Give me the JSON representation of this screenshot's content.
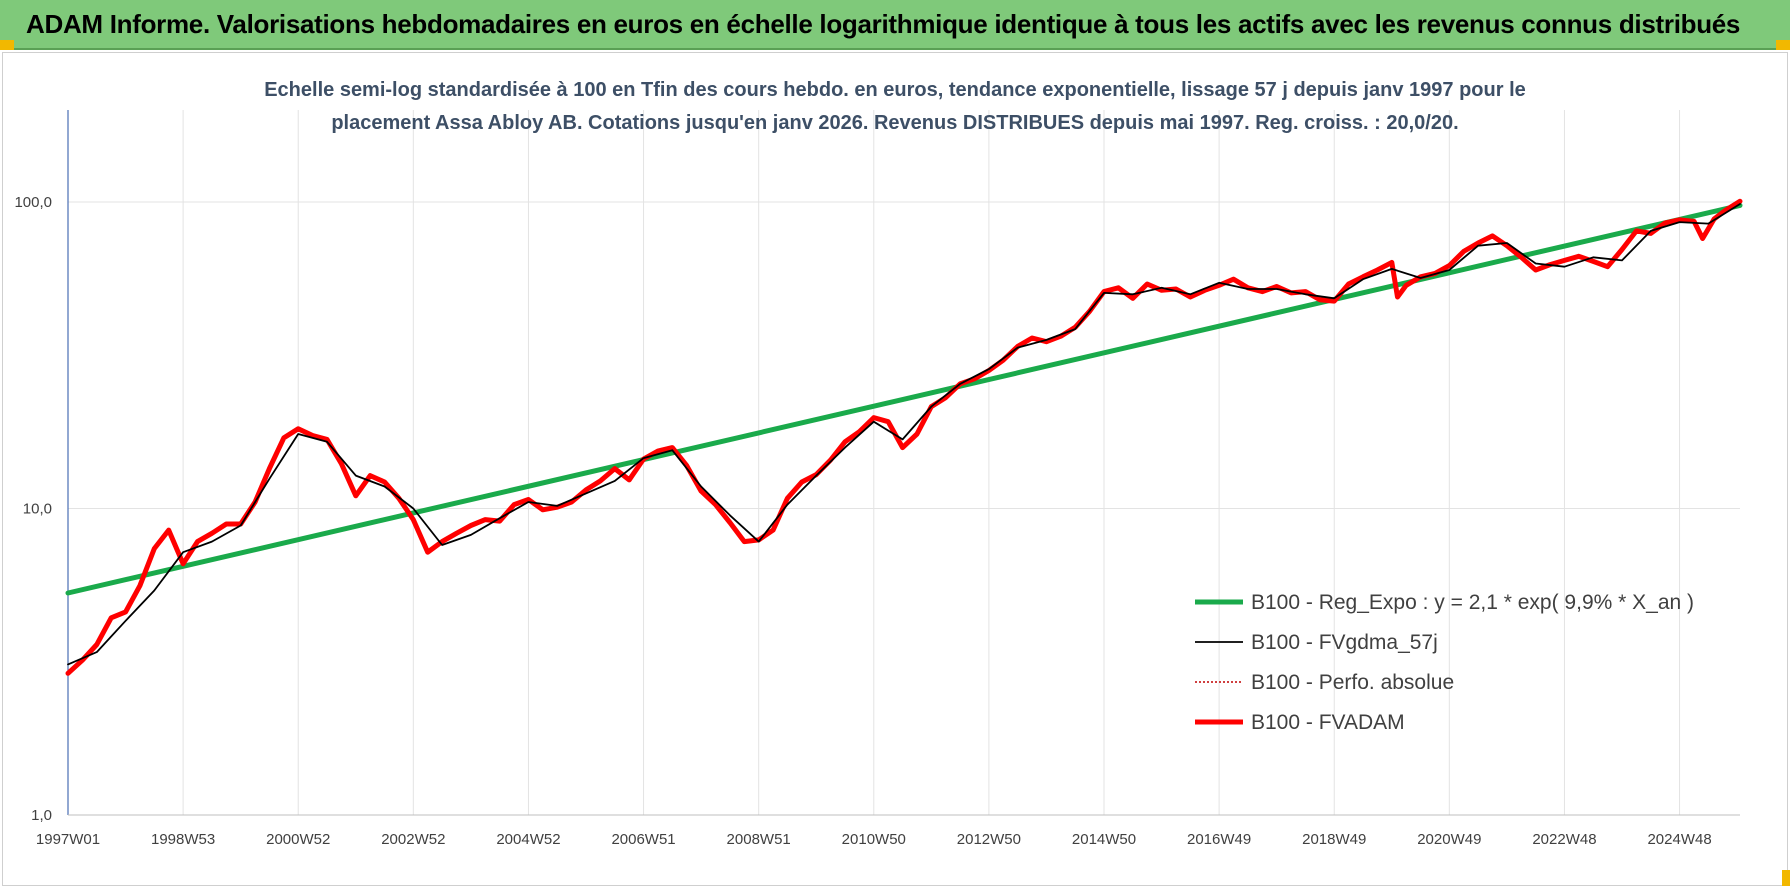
{
  "banner": {
    "title": "ADAM Informe. Valorisations hebdomadaires en euros en échelle logarithmique identique à tous les actifs avec les revenus connus distribués",
    "background": "#7fc97a",
    "corner_color": "#f2b800"
  },
  "chart_data": {
    "type": "line",
    "title_lines": [
      "Echelle semi-log standardisée à 100 en Tfin des cours hebdo. en euros, tendance exponentielle, lissage 57 j depuis janv 1997 pour le",
      "placement Assa Abloy AB. Cotations jusqu'en janv 2026. Revenus DISTRIBUES depuis mai 1997. Reg. croiss. : 20,0/20."
    ],
    "xlabel": "",
    "ylabel": "",
    "y_scale": "log",
    "ylim": [
      1,
      100
    ],
    "yticks": [
      {
        "value": 1,
        "label": "1,0"
      },
      {
        "value": 10,
        "label": "10,0"
      },
      {
        "value": 100,
        "label": "100,0"
      }
    ],
    "xlim": [
      1997.0,
      2026.05
    ],
    "xticks": [
      {
        "value": 1997.0,
        "label": "1997W01"
      },
      {
        "value": 1999.0,
        "label": "1998W53"
      },
      {
        "value": 2001.0,
        "label": "2000W52"
      },
      {
        "value": 2003.0,
        "label": "2002W52"
      },
      {
        "value": 2005.0,
        "label": "2004W52"
      },
      {
        "value": 2007.0,
        "label": "2006W51"
      },
      {
        "value": 2009.0,
        "label": "2008W51"
      },
      {
        "value": 2011.0,
        "label": "2010W50"
      },
      {
        "value": 2013.0,
        "label": "2012W50"
      },
      {
        "value": 2015.0,
        "label": "2014W50"
      },
      {
        "value": 2017.0,
        "label": "2016W49"
      },
      {
        "value": 2019.0,
        "label": "2018W49"
      },
      {
        "value": 2021.0,
        "label": "2020W49"
      },
      {
        "value": 2023.0,
        "label": "2022W48"
      },
      {
        "value": 2025.0,
        "label": "2024W48"
      }
    ],
    "grid": true,
    "legend_position": "bottom-right",
    "series": [
      {
        "name": "B100 - Reg_Expo : y = 2,1 * exp( 9,9% *  X_an )",
        "color": "#1aaa4b",
        "style": "solid-thick",
        "points": [
          [
            1997.0,
            5.3
          ],
          [
            2026.05,
            97.5
          ]
        ]
      },
      {
        "name": "B100 - FVgdma_57j",
        "color": "#000000",
        "style": "solid-thin",
        "points": [
          [
            1997.0,
            3.1
          ],
          [
            1997.5,
            3.4
          ],
          [
            1998.0,
            4.3
          ],
          [
            1998.5,
            5.4
          ],
          [
            1999.0,
            7.2
          ],
          [
            1999.5,
            7.8
          ],
          [
            2000.0,
            8.8
          ],
          [
            2000.5,
            12.5
          ],
          [
            2001.0,
            17.5
          ],
          [
            2001.5,
            16.5
          ],
          [
            2002.0,
            12.8
          ],
          [
            2002.5,
            11.8
          ],
          [
            2003.0,
            10.0
          ],
          [
            2003.5,
            7.6
          ],
          [
            2004.0,
            8.2
          ],
          [
            2004.5,
            9.3
          ],
          [
            2005.0,
            10.5
          ],
          [
            2005.5,
            10.2
          ],
          [
            2006.0,
            11.2
          ],
          [
            2006.5,
            12.3
          ],
          [
            2007.0,
            14.6
          ],
          [
            2007.5,
            15.5
          ],
          [
            2008.0,
            11.8
          ],
          [
            2008.5,
            9.5
          ],
          [
            2009.0,
            7.8
          ],
          [
            2009.5,
            10.3
          ],
          [
            2010.0,
            12.8
          ],
          [
            2010.5,
            15.8
          ],
          [
            2011.0,
            19.2
          ],
          [
            2011.5,
            16.8
          ],
          [
            2012.0,
            21.5
          ],
          [
            2012.5,
            25.5
          ],
          [
            2013.0,
            28.5
          ],
          [
            2013.5,
            33.5
          ],
          [
            2014.0,
            35.5
          ],
          [
            2014.5,
            38.5
          ],
          [
            2015.0,
            50.5
          ],
          [
            2015.5,
            50.0
          ],
          [
            2016.0,
            52.5
          ],
          [
            2016.5,
            50.0
          ],
          [
            2017.0,
            54.5
          ],
          [
            2017.5,
            52.0
          ],
          [
            2018.0,
            52.0
          ],
          [
            2018.5,
            50.0
          ],
          [
            2019.0,
            48.5
          ],
          [
            2019.5,
            56.0
          ],
          [
            2020.0,
            60.5
          ],
          [
            2020.5,
            56.5
          ],
          [
            2021.0,
            60.0
          ],
          [
            2021.5,
            72.0
          ],
          [
            2022.0,
            73.5
          ],
          [
            2022.5,
            63.0
          ],
          [
            2023.0,
            61.5
          ],
          [
            2023.5,
            66.0
          ],
          [
            2024.0,
            64.5
          ],
          [
            2024.5,
            80.5
          ],
          [
            2025.0,
            86.0
          ],
          [
            2025.5,
            85.0
          ],
          [
            2026.05,
            98.5
          ]
        ]
      },
      {
        "name": "B100 - Perfo. absolue",
        "color": "#c00000",
        "style": "dotted",
        "points": []
      },
      {
        "name": "B100 - FVADAM",
        "color": "#ff0000",
        "style": "solid-thick",
        "points": [
          [
            1997.0,
            2.9
          ],
          [
            1997.25,
            3.2
          ],
          [
            1997.5,
            3.6
          ],
          [
            1997.75,
            4.4
          ],
          [
            1998.0,
            4.6
          ],
          [
            1998.25,
            5.6
          ],
          [
            1998.5,
            7.4
          ],
          [
            1998.75,
            8.5
          ],
          [
            1999.0,
            6.6
          ],
          [
            1999.25,
            7.8
          ],
          [
            1999.5,
            8.3
          ],
          [
            1999.75,
            8.9
          ],
          [
            2000.0,
            8.9
          ],
          [
            2000.25,
            10.5
          ],
          [
            2000.5,
            13.5
          ],
          [
            2000.75,
            17.0
          ],
          [
            2001.0,
            18.2
          ],
          [
            2001.25,
            17.3
          ],
          [
            2001.5,
            16.8
          ],
          [
            2001.75,
            14.0
          ],
          [
            2002.0,
            11.0
          ],
          [
            2002.25,
            12.8
          ],
          [
            2002.5,
            12.2
          ],
          [
            2002.75,
            10.8
          ],
          [
            2003.0,
            9.2
          ],
          [
            2003.25,
            7.2
          ],
          [
            2003.5,
            7.8
          ],
          [
            2003.75,
            8.3
          ],
          [
            2004.0,
            8.8
          ],
          [
            2004.25,
            9.2
          ],
          [
            2004.5,
            9.1
          ],
          [
            2004.75,
            10.3
          ],
          [
            2005.0,
            10.7
          ],
          [
            2005.25,
            9.9
          ],
          [
            2005.5,
            10.1
          ],
          [
            2005.75,
            10.5
          ],
          [
            2006.0,
            11.5
          ],
          [
            2006.25,
            12.3
          ],
          [
            2006.5,
            13.5
          ],
          [
            2006.75,
            12.4
          ],
          [
            2007.0,
            14.5
          ],
          [
            2007.25,
            15.4
          ],
          [
            2007.5,
            15.8
          ],
          [
            2007.75,
            13.8
          ],
          [
            2008.0,
            11.4
          ],
          [
            2008.25,
            10.3
          ],
          [
            2008.5,
            9.0
          ],
          [
            2008.75,
            7.8
          ],
          [
            2009.0,
            7.9
          ],
          [
            2009.25,
            8.5
          ],
          [
            2009.5,
            10.8
          ],
          [
            2009.75,
            12.2
          ],
          [
            2010.0,
            12.9
          ],
          [
            2010.25,
            14.4
          ],
          [
            2010.5,
            16.5
          ],
          [
            2010.75,
            17.8
          ],
          [
            2011.0,
            19.8
          ],
          [
            2011.25,
            19.2
          ],
          [
            2011.5,
            15.8
          ],
          [
            2011.75,
            17.5
          ],
          [
            2012.0,
            21.5
          ],
          [
            2012.25,
            23.0
          ],
          [
            2012.5,
            25.5
          ],
          [
            2012.75,
            26.5
          ],
          [
            2013.0,
            28.2
          ],
          [
            2013.25,
            30.5
          ],
          [
            2013.5,
            33.8
          ],
          [
            2013.75,
            36.0
          ],
          [
            2014.0,
            35.0
          ],
          [
            2014.25,
            36.5
          ],
          [
            2014.5,
            39.0
          ],
          [
            2014.75,
            44.0
          ],
          [
            2015.0,
            51.0
          ],
          [
            2015.25,
            52.5
          ],
          [
            2015.5,
            48.5
          ],
          [
            2015.75,
            54.0
          ],
          [
            2016.0,
            51.5
          ],
          [
            2016.25,
            52.0
          ],
          [
            2016.5,
            49.0
          ],
          [
            2016.75,
            51.5
          ],
          [
            2017.0,
            53.5
          ],
          [
            2017.25,
            56.0
          ],
          [
            2017.5,
            52.5
          ],
          [
            2017.75,
            51.0
          ],
          [
            2018.0,
            53.0
          ],
          [
            2018.25,
            50.5
          ],
          [
            2018.5,
            51.0
          ],
          [
            2018.75,
            48.0
          ],
          [
            2019.0,
            47.5
          ],
          [
            2019.25,
            54.0
          ],
          [
            2019.5,
            57.0
          ],
          [
            2019.75,
            60.0
          ],
          [
            2020.0,
            63.5
          ],
          [
            2020.1,
            49.0
          ],
          [
            2020.25,
            53.5
          ],
          [
            2020.5,
            57.0
          ],
          [
            2020.75,
            58.5
          ],
          [
            2021.0,
            62.0
          ],
          [
            2021.25,
            69.0
          ],
          [
            2021.5,
            73.5
          ],
          [
            2021.75,
            77.5
          ],
          [
            2022.0,
            72.0
          ],
          [
            2022.25,
            66.0
          ],
          [
            2022.5,
            60.0
          ],
          [
            2022.75,
            62.5
          ],
          [
            2023.0,
            64.5
          ],
          [
            2023.25,
            66.5
          ],
          [
            2023.5,
            64.0
          ],
          [
            2023.75,
            61.5
          ],
          [
            2024.0,
            70.0
          ],
          [
            2024.25,
            80.5
          ],
          [
            2024.5,
            79.0
          ],
          [
            2024.75,
            85.5
          ],
          [
            2025.0,
            87.5
          ],
          [
            2025.25,
            86.5
          ],
          [
            2025.4,
            76.0
          ],
          [
            2025.6,
            88.0
          ],
          [
            2025.8,
            94.0
          ],
          [
            2026.05,
            100.5
          ]
        ]
      }
    ]
  }
}
